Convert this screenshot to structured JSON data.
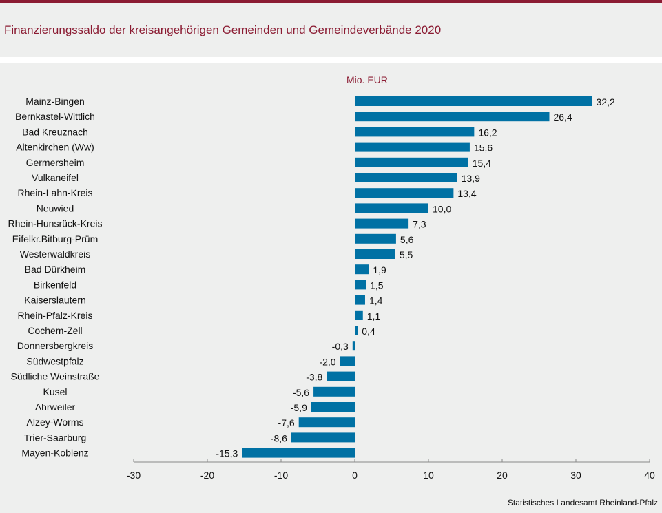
{
  "header": {
    "title": "Finanzierungssaldo der kreisangehörigen Gemeinden und Gemeindeverbände 2020"
  },
  "footer": {
    "source": "Statistisches Landesamt  Rheinland-Pfalz"
  },
  "colors": {
    "accent": "#8b1c33",
    "bar": "#0071a4"
  },
  "chart_data": {
    "type": "bar",
    "orientation": "horizontal",
    "title": "Finanzierungssaldo der kreisangehörigen Gemeinden und Gemeindeverbände 2020",
    "unit_label": "Mio. EUR",
    "xlabel": "",
    "ylabel": "",
    "xlim": [
      -30,
      40
    ],
    "xticks": [
      -30,
      -20,
      -10,
      0,
      10,
      20,
      30,
      40
    ],
    "xtick_labels": [
      "-30",
      "-20",
      "-10",
      "0",
      "10",
      "20",
      "30",
      "40"
    ],
    "grid": false,
    "categories": [
      "Mainz-Bingen",
      "Bernkastel-Wittlich",
      "Bad Kreuznach",
      "Altenkirchen (Ww)",
      "Germersheim",
      "Vulkaneifel",
      "Rhein-Lahn-Kreis",
      "Neuwied",
      "Rhein-Hunsrück-Kreis",
      "Eifelkr.Bitburg-Prüm",
      "Westerwaldkreis",
      "Bad Dürkheim",
      "Birkenfeld",
      "Kaiserslautern",
      "Rhein-Pfalz-Kreis",
      "Cochem-Zell",
      "Donnersbergkreis",
      "Südwestpfalz",
      "Südliche Weinstraße",
      "Kusel",
      "Ahrweiler",
      "Alzey-Worms",
      "Trier-Saarburg",
      "Mayen-Koblenz"
    ],
    "values": [
      32.2,
      26.4,
      16.2,
      15.6,
      15.4,
      13.9,
      13.4,
      10.0,
      7.3,
      5.6,
      5.5,
      1.9,
      1.5,
      1.4,
      1.1,
      0.4,
      -0.3,
      -2.0,
      -3.8,
      -5.6,
      -5.9,
      -7.6,
      -8.6,
      -15.3
    ],
    "value_labels": [
      "32,2",
      "26,4",
      "16,2",
      "15,6",
      "15,4",
      "13,9",
      "13,4",
      "10,0",
      "7,3",
      "5,6",
      "5,5",
      "1,9",
      "1,5",
      "1,4",
      "1,1",
      "0,4",
      "-0,3",
      "-2,0",
      "-3,8",
      "-5,6",
      "-5,9",
      "-7,6",
      "-8,6",
      "-15,3"
    ]
  }
}
